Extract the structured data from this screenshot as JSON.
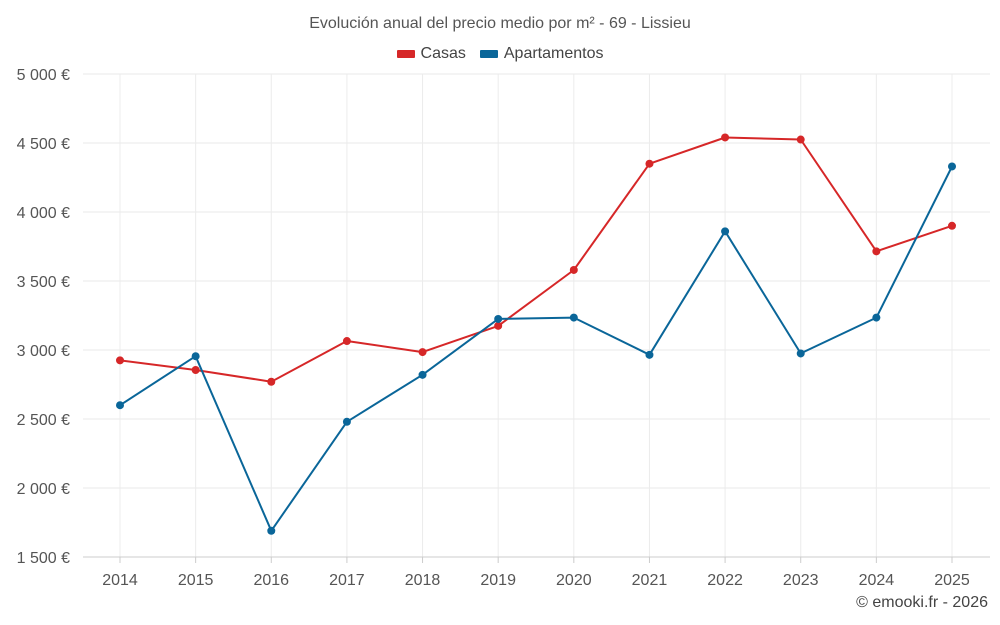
{
  "chart_data": {
    "type": "line",
    "title": "Evolución anual del precio medio por m² - 69 - Lissieu",
    "xlabel": "",
    "ylabel": "",
    "categories": [
      "2014",
      "2015",
      "2016",
      "2017",
      "2018",
      "2019",
      "2020",
      "2021",
      "2022",
      "2023",
      "2024",
      "2025"
    ],
    "ylim": [
      1500,
      5000
    ],
    "yticks": [
      1500,
      2000,
      2500,
      3000,
      3500,
      4000,
      4500,
      5000
    ],
    "ytick_labels": [
      "1 500 €",
      "2 000 €",
      "2 500 €",
      "3 000 €",
      "3 500 €",
      "4 000 €",
      "4 500 €",
      "5 000 €"
    ],
    "grid": true,
    "legend_position": "top-center",
    "series": [
      {
        "name": "Casas",
        "color": "#d62728",
        "values": [
          2925,
          2855,
          2770,
          3065,
          2985,
          3175,
          3580,
          4350,
          4540,
          4525,
          3715,
          3900
        ]
      },
      {
        "name": "Apartamentos",
        "color": "#0a6699",
        "values": [
          2600,
          2955,
          1690,
          2480,
          2820,
          3225,
          3235,
          2965,
          3860,
          2975,
          3235,
          4330
        ]
      }
    ]
  },
  "credit": "© emooki.fr - 2026"
}
